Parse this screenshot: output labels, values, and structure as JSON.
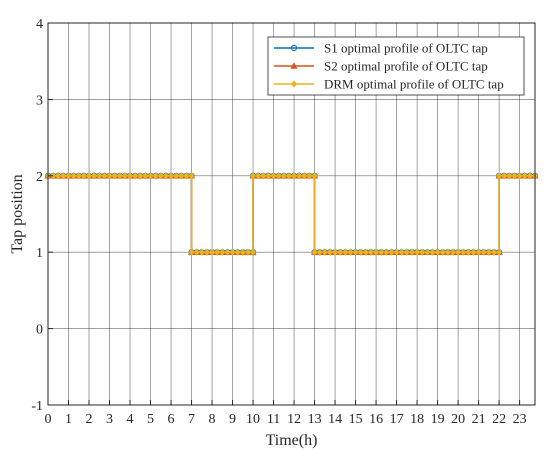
{
  "chart_data": {
    "type": "line",
    "title": "",
    "xlabel": "Time(h)",
    "ylabel": "Tap position",
    "xlim": [
      0,
      23.75
    ],
    "ylim": [
      -1,
      4
    ],
    "xticks": [
      0,
      1,
      2,
      3,
      4,
      5,
      6,
      7,
      8,
      9,
      10,
      11,
      12,
      13,
      14,
      15,
      16,
      17,
      18,
      19,
      20,
      21,
      22,
      23
    ],
    "yticks": [
      -1,
      0,
      1,
      2,
      3,
      4
    ],
    "grid": true,
    "legend_position": "top-right",
    "interval_h": 0.25,
    "series": [
      {
        "name": "S1 optimal profile of OLTC tap",
        "color": "#0072BD",
        "marker": "circle",
        "segments": [
          {
            "start": 0,
            "end": 7,
            "value": 2
          },
          {
            "start": 7,
            "end": 10,
            "value": 1
          },
          {
            "start": 10,
            "end": 13,
            "value": 2
          },
          {
            "start": 13,
            "end": 22,
            "value": 1
          },
          {
            "start": 22,
            "end": 23.75,
            "value": 2
          }
        ]
      },
      {
        "name": "S2 optimal profile of OLTC tap",
        "color": "#D95319",
        "marker": "triangle",
        "segments": [
          {
            "start": 0,
            "end": 7,
            "value": 2
          },
          {
            "start": 7,
            "end": 10,
            "value": 1
          },
          {
            "start": 10,
            "end": 13,
            "value": 2
          },
          {
            "start": 13,
            "end": 22,
            "value": 1
          },
          {
            "start": 22,
            "end": 23.75,
            "value": 2
          }
        ]
      },
      {
        "name": "DRM optimal profile of OLTC tap",
        "color": "#EDB120",
        "marker": "diamond",
        "segments": [
          {
            "start": 0,
            "end": 7,
            "value": 2
          },
          {
            "start": 7,
            "end": 10,
            "value": 1
          },
          {
            "start": 10,
            "end": 13,
            "value": 2
          },
          {
            "start": 13,
            "end": 22,
            "value": 1
          },
          {
            "start": 22,
            "end": 23.75,
            "value": 2
          }
        ]
      }
    ]
  }
}
